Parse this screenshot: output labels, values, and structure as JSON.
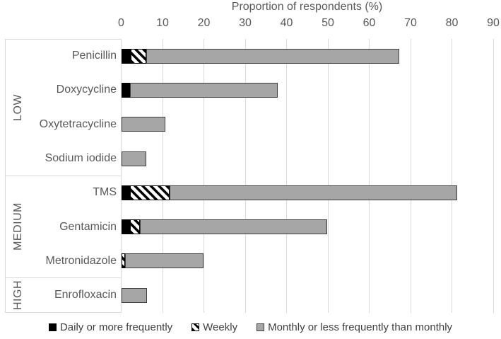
{
  "chart_data": {
    "type": "bar",
    "orientation": "horizontal-stacked",
    "title": "Proportion of respondents (%)",
    "axis": {
      "label": "Proportion of respondents (%)",
      "position": "top",
      "min": 0,
      "max": 90,
      "tick_interval": 10,
      "ticks": [
        0,
        10,
        20,
        30,
        40,
        50,
        60,
        70,
        80,
        90
      ],
      "gridlines": true
    },
    "groups": [
      {
        "label": "LOW",
        "categories": [
          "Penicillin",
          "Doxycycline",
          "Oxytetracycline",
          "Sodium iodide"
        ]
      },
      {
        "label": "MEDIUM",
        "categories": [
          "TMS",
          "Gentamicin",
          "Metronidazole"
        ]
      },
      {
        "label": "HIGH",
        "categories": [
          "Enrofloxacin"
        ]
      }
    ],
    "categories": [
      "Penicillin",
      "Doxycycline",
      "Oxytetracycline",
      "Sodium iodide",
      "TMS",
      "Gentamicin",
      "Metronidazole",
      "Enrofloxacin"
    ],
    "series": [
      {
        "name": "Daily or more frequently",
        "pattern": "solid-black",
        "color": "#000000",
        "values": [
          2.3,
          2.2,
          0,
          0,
          2.1,
          2.1,
          0,
          0
        ]
      },
      {
        "name": "Weekly",
        "pattern": "diagonal-hatch",
        "color": "#000000",
        "values": [
          3.8,
          0,
          0,
          0,
          9.6,
          2.4,
          1,
          0
        ]
      },
      {
        "name": "Monthly or less frequently than monthly",
        "pattern": "solid-gray",
        "color": "#a6a6a6",
        "values": [
          61.2,
          35.7,
          10.7,
          6,
          69.5,
          45.3,
          19,
          6.3
        ]
      }
    ],
    "legend_position": "bottom",
    "colors": {
      "bar_gray_fill": "#a6a6a6",
      "bar_gray_border": "#3f3f3f",
      "bar_black": "#000000",
      "gridline": "#d9d9d9",
      "axis_text": "#595959",
      "legend_text": "#404040"
    }
  }
}
